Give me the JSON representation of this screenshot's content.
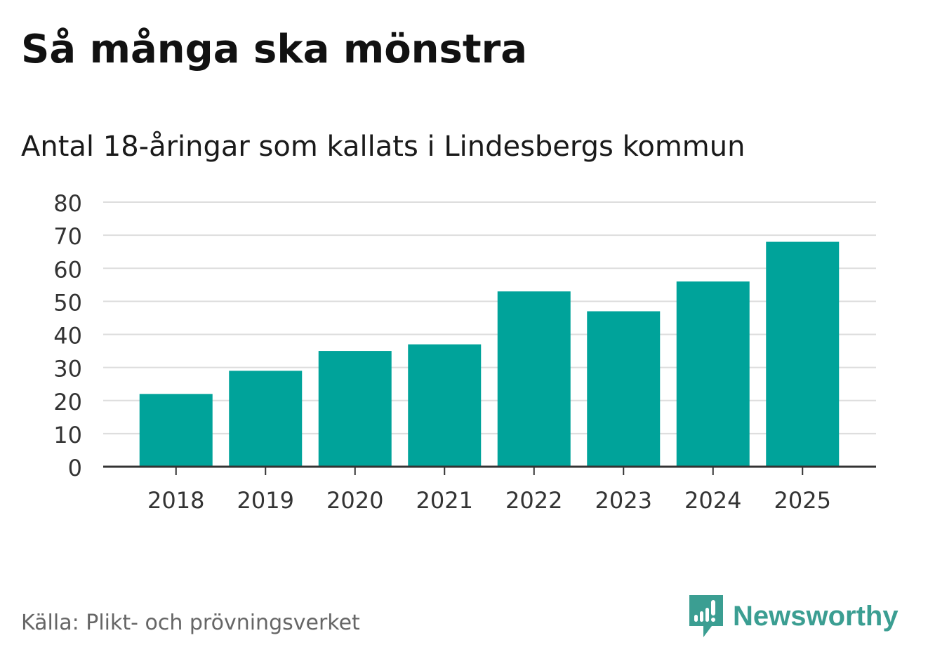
{
  "chart_data": {
    "type": "bar",
    "title": "Så många ska mönstra",
    "subtitle": "Antal 18-åringar som kallats i Lindesbergs kommun",
    "xlabel": "",
    "ylabel": "",
    "categories": [
      "2018",
      "2019",
      "2020",
      "2021",
      "2022",
      "2023",
      "2024",
      "2025"
    ],
    "values": [
      22,
      29,
      35,
      37,
      53,
      47,
      56,
      68
    ],
    "ylim": [
      0,
      80
    ],
    "yticks": [
      0,
      10,
      20,
      30,
      40,
      50,
      60,
      70,
      80
    ],
    "grid": true,
    "bar_color": "#00a39a",
    "grid_color": "#dddddd",
    "axis_color": "#333333"
  },
  "footer": {
    "source": "Källa: Plikt- och prövningsverket",
    "brand": "Newsworthy",
    "brand_color": "#3b9e92"
  }
}
